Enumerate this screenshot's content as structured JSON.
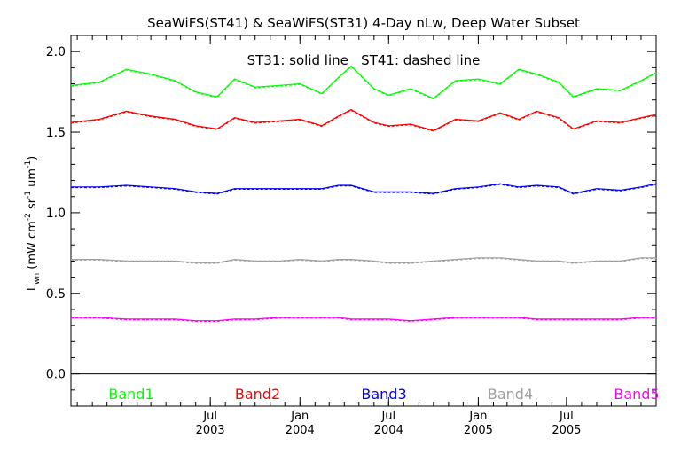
{
  "chart_data": {
    "type": "line",
    "title": "SeaWiFS(ST41) & SeaWiFS(ST31) 4-Day nLw, Deep Water Subset",
    "annotation": "ST31: solid line   ST41: dashed line",
    "ylabel": "L_wn (mW cm^-2 sr^-1 um^-1)",
    "ylabel_main": "L",
    "ylabel_sub": "wn",
    "ylabel_units_a": " (mW cm",
    "ylabel_units_b": " sr",
    "ylabel_units_c": " um",
    "ylabel_units_d": ")",
    "ylabel_exp_a": "-2",
    "ylabel_exp_b": "-1",
    "ylabel_exp_c": "-1",
    "xlabel": "",
    "ylim": [
      -0.2,
      2.1
    ],
    "xlim": [
      "2002-09-18",
      "2006-01-01"
    ],
    "y_ticks": [
      0.0,
      0.5,
      1.0,
      1.5,
      2.0
    ],
    "y_tick_labels": [
      "0.0",
      "0.5",
      "1.0",
      "1.5",
      "2.0"
    ],
    "x_ticks": [
      {
        "date": "2003-07-01",
        "month": "Jul",
        "year": "2003"
      },
      {
        "date": "2004-01-01",
        "month": "Jan",
        "year": "2004"
      },
      {
        "date": "2004-07-01",
        "month": "Jul",
        "year": "2004"
      },
      {
        "date": "2005-01-01",
        "month": "Jan",
        "year": "2005"
      },
      {
        "date": "2005-07-01",
        "month": "Jul",
        "year": "2005"
      }
    ],
    "x": [
      "2002-09-18",
      "2002-11-15",
      "2003-01-10",
      "2003-03-01",
      "2003-04-20",
      "2003-06-01",
      "2003-07-15",
      "2003-08-20",
      "2003-10-01",
      "2003-11-20",
      "2004-01-01",
      "2004-02-15",
      "2004-03-20",
      "2004-04-15",
      "2004-06-01",
      "2004-07-01",
      "2004-08-15",
      "2004-10-01",
      "2004-11-15",
      "2005-01-01",
      "2005-02-15",
      "2005-03-25",
      "2005-05-01",
      "2005-06-15",
      "2005-07-15",
      "2005-09-01",
      "2005-10-20",
      "2005-12-01",
      "2006-01-01"
    ],
    "series": [
      {
        "name": "Band1",
        "color": "#00ff00",
        "values": [
          1.79,
          1.81,
          1.89,
          1.86,
          1.82,
          1.75,
          1.72,
          1.83,
          1.78,
          1.79,
          1.8,
          1.74,
          1.84,
          1.91,
          1.77,
          1.73,
          1.77,
          1.71,
          1.82,
          1.83,
          1.8,
          1.89,
          1.86,
          1.81,
          1.72,
          1.77,
          1.76,
          1.82,
          1.87
        ]
      },
      {
        "name": "Band2",
        "color": "#ff0000",
        "values": [
          1.56,
          1.58,
          1.63,
          1.6,
          1.58,
          1.54,
          1.52,
          1.59,
          1.56,
          1.57,
          1.58,
          1.54,
          1.6,
          1.64,
          1.56,
          1.54,
          1.55,
          1.51,
          1.58,
          1.57,
          1.62,
          1.58,
          1.63,
          1.59,
          1.52,
          1.57,
          1.56,
          1.59,
          1.61
        ]
      },
      {
        "name": "Band3",
        "color": "#0000ff",
        "values": [
          1.16,
          1.16,
          1.17,
          1.16,
          1.15,
          1.13,
          1.12,
          1.15,
          1.15,
          1.15,
          1.15,
          1.15,
          1.17,
          1.17,
          1.13,
          1.13,
          1.13,
          1.12,
          1.15,
          1.16,
          1.18,
          1.16,
          1.17,
          1.16,
          1.12,
          1.15,
          1.14,
          1.16,
          1.18
        ]
      },
      {
        "name": "Band4",
        "color": "#a0a0a0",
        "values": [
          0.71,
          0.71,
          0.7,
          0.7,
          0.7,
          0.69,
          0.69,
          0.71,
          0.7,
          0.7,
          0.71,
          0.7,
          0.71,
          0.71,
          0.7,
          0.69,
          0.69,
          0.7,
          0.71,
          0.72,
          0.72,
          0.71,
          0.7,
          0.7,
          0.69,
          0.7,
          0.7,
          0.72,
          0.72
        ]
      },
      {
        "name": "Band5",
        "color": "#ff00ff",
        "values": [
          0.35,
          0.35,
          0.34,
          0.34,
          0.34,
          0.33,
          0.33,
          0.34,
          0.34,
          0.35,
          0.35,
          0.35,
          0.35,
          0.34,
          0.34,
          0.34,
          0.33,
          0.34,
          0.35,
          0.35,
          0.35,
          0.35,
          0.34,
          0.34,
          0.34,
          0.34,
          0.34,
          0.35,
          0.35
        ]
      }
    ],
    "legend_placement": "bottom, inside plot area",
    "grid": false
  }
}
